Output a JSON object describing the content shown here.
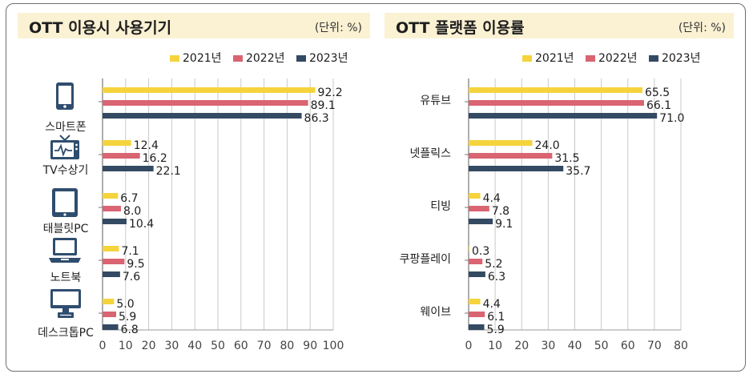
{
  "legend": [
    "2021년",
    "2022년",
    "2023년"
  ],
  "colors": [
    "#f5d33c",
    "#d96472",
    "#344a63"
  ],
  "chart_data": [
    {
      "type": "bar",
      "orientation": "horizontal",
      "title": "OTT 이용시 사용기기",
      "unit": "(단위: %)",
      "categories": [
        "스마트폰",
        "TV수상기",
        "태블릿PC",
        "노트북",
        "데스크톱PC"
      ],
      "icons": [
        "smartphone-icon",
        "tv-icon",
        "tablet-icon",
        "laptop-icon",
        "desktop-icon"
      ],
      "series": [
        {
          "name": "2021년",
          "values": [
            92.2,
            12.4,
            6.7,
            7.1,
            5.0
          ],
          "labels": [
            "92.2",
            "12.4",
            "6.7",
            "7.1",
            "5.0"
          ]
        },
        {
          "name": "2022년",
          "values": [
            89.1,
            16.2,
            8.0,
            9.5,
            5.9
          ],
          "labels": [
            "89.1",
            "16.2",
            "8.0",
            "9.5",
            "5.9"
          ]
        },
        {
          "name": "2023년",
          "values": [
            86.3,
            22.1,
            10.4,
            7.6,
            6.8
          ],
          "labels": [
            "86.3",
            "22.1",
            "10.4",
            "7.6",
            "6.8"
          ]
        }
      ],
      "xlim": [
        0,
        100
      ],
      "ticks": [
        "0",
        "10",
        "20",
        "30",
        "40",
        "50",
        "60",
        "70",
        "80",
        "90",
        "100"
      ],
      "grid": true
    },
    {
      "type": "bar",
      "orientation": "horizontal",
      "title": "OTT 플랫폼 이용률",
      "unit": "(단위: %)",
      "categories": [
        "유튜브",
        "넷플릭스",
        "티빙",
        "쿠팡플레이",
        "웨이브"
      ],
      "series": [
        {
          "name": "2021년",
          "values": [
            65.5,
            24.0,
            4.4,
            0.3,
            4.4
          ],
          "labels": [
            "65.5",
            "24.0",
            "4.4",
            "0.3",
            "4.4"
          ]
        },
        {
          "name": "2022년",
          "values": [
            66.1,
            31.5,
            7.8,
            5.2,
            6.1
          ],
          "labels": [
            "66.1",
            "31.5",
            "7.8",
            "5.2",
            "6.1"
          ]
        },
        {
          "name": "2023년",
          "values": [
            71.0,
            35.7,
            9.1,
            6.3,
            5.9
          ],
          "labels": [
            "71.0",
            "35.7",
            "9.1",
            "6.3",
            "5.9"
          ]
        }
      ],
      "xlim": [
        0,
        80
      ],
      "ticks": [
        "0",
        "10",
        "20",
        "30",
        "40",
        "50",
        "60",
        "70",
        "80"
      ],
      "grid": true
    }
  ]
}
